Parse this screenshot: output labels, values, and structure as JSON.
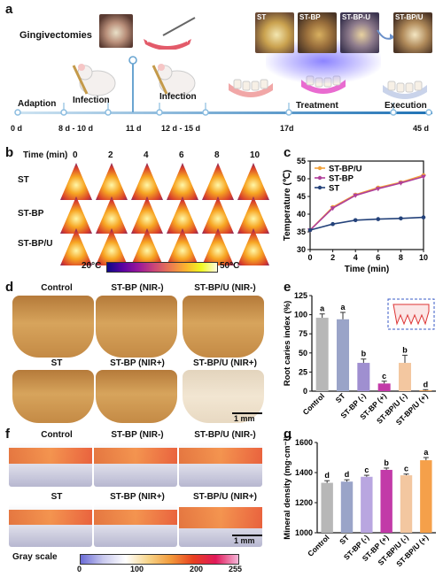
{
  "panel_a": {
    "label": "a",
    "gingivectomies": "Gingivectomies",
    "adaption": "Adaption",
    "infection1": "Infection",
    "infection2": "Infection",
    "treatment": "Treatment",
    "execution": "Execution",
    "timeline": [
      "0 d",
      "8 d - 10 d",
      "11 d",
      "12 d - 15 d",
      "17d",
      "45 d"
    ],
    "photo_labels": [
      "ST",
      "ST-BP",
      "ST-BP-U",
      "ST-BP/U"
    ]
  },
  "panel_b": {
    "label": "b",
    "time_label": "Time (min)",
    "times": [
      "0",
      "2",
      "4",
      "6",
      "8",
      "10"
    ],
    "rows": [
      "ST",
      "ST-BP",
      "ST-BP/U"
    ],
    "scale_min": "20°C",
    "scale_max": "50°C"
  },
  "panel_c": {
    "label": "c",
    "chart_data": {
      "type": "line",
      "xlabel": "Time (min)",
      "ylabel": "Temperature (℃)",
      "x": [
        0,
        2,
        4,
        6,
        8,
        10
      ],
      "xlim": [
        0,
        10
      ],
      "ylim": [
        30,
        55
      ],
      "xticks": [
        0,
        2,
        4,
        6,
        8,
        10
      ],
      "yticks": [
        30,
        35,
        40,
        45,
        50,
        55
      ],
      "series": [
        {
          "name": "ST-BP/U",
          "color": "#f2a23a",
          "marker": "circle",
          "values": [
            35.5,
            42.0,
            45.5,
            47.5,
            49.0,
            51.0
          ]
        },
        {
          "name": "ST-BP",
          "color": "#b0409a",
          "marker": "triangle-down",
          "values": [
            35.5,
            41.7,
            45.3,
            47.2,
            48.8,
            50.6
          ]
        },
        {
          "name": "ST",
          "color": "#24427a",
          "marker": "circle",
          "values": [
            35.5,
            37.2,
            38.3,
            38.6,
            38.8,
            39.1
          ]
        }
      ],
      "legend": "top-left"
    }
  },
  "panel_d": {
    "label": "d",
    "top_labels": [
      "Control",
      "ST-BP (NIR-)",
      "ST-BP/U (NIR-)"
    ],
    "bottom_labels": [
      "ST",
      "ST-BP (NIR+)",
      "ST-BP/U (NIR+)"
    ],
    "scalebar": "1 mm"
  },
  "panel_e": {
    "label": "e",
    "chart_data": {
      "type": "bar",
      "ylabel": "Root caries index (%)",
      "categories": [
        "Control",
        "ST",
        "ST-BP (-)",
        "ST-BP (+)",
        "ST-BP/U (-)",
        "ST-BP/U (+)"
      ],
      "values": [
        96,
        94,
        37,
        10,
        37,
        1
      ],
      "errors": [
        5,
        9,
        5,
        3,
        10,
        1
      ],
      "letters": [
        "a",
        "a",
        "b",
        "c",
        "b",
        "d"
      ],
      "colors": [
        "#b7b7b7",
        "#9aa4c8",
        "#9f8fd0",
        "#c23aa8",
        "#f3c7a0",
        "#f5a04a"
      ],
      "ylim": [
        0,
        125
      ],
      "yticks": [
        0,
        25,
        50,
        75,
        100,
        125
      ]
    }
  },
  "panel_f": {
    "label": "f",
    "top_labels": [
      "Control",
      "ST-BP (NIR-)",
      "ST-BP/U (NIR-)"
    ],
    "bottom_labels": [
      "ST",
      "ST-BP (NIR+)",
      "ST-BP/U (NIR+)"
    ],
    "scalebar": "1 mm",
    "gray_scale": "Gray scale",
    "gray_ticks": [
      "0",
      "100",
      "200",
      "255"
    ]
  },
  "panel_g": {
    "label": "g",
    "chart_data": {
      "type": "bar",
      "ylabel": "Mineral density (mg·cm⁻³)",
      "categories": [
        "Control",
        "ST",
        "ST-BP (-)",
        "ST-BP (+)",
        "ST-BP/U (-)",
        "ST-BP/U (+)"
      ],
      "values": [
        1332,
        1340,
        1372,
        1418,
        1382,
        1482
      ],
      "errors": [
        14,
        12,
        10,
        12,
        8,
        18
      ],
      "letters": [
        "d",
        "d",
        "c",
        "b",
        "c",
        "a"
      ],
      "colors": [
        "#b7b7b7",
        "#9aa4c8",
        "#b9a6e0",
        "#c23aa8",
        "#f3c7a0",
        "#f5a04a"
      ],
      "ylim": [
        1000,
        1600
      ],
      "yticks": [
        1000,
        1200,
        1400,
        1600
      ]
    }
  }
}
